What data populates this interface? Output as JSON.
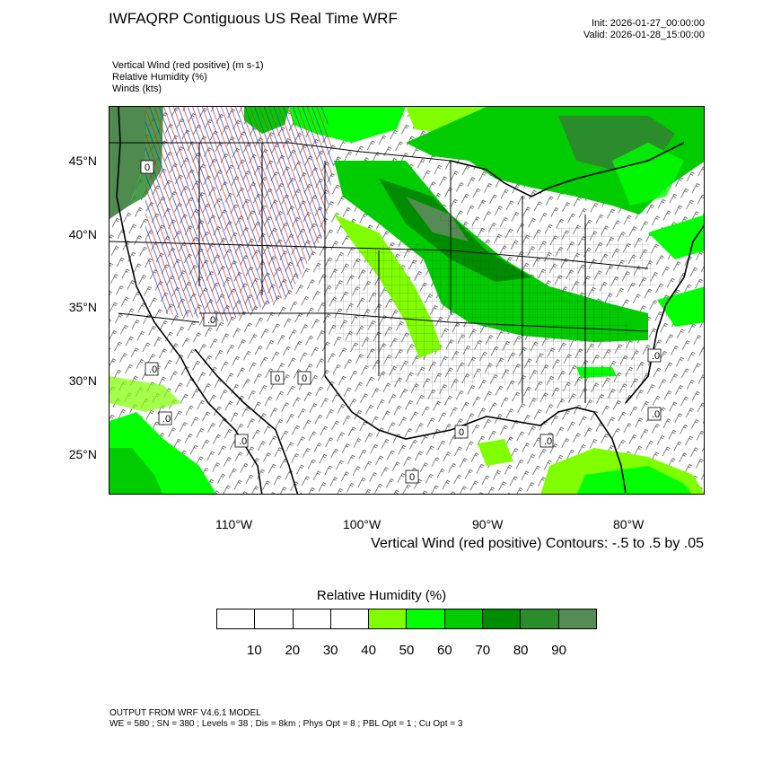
{
  "header": {
    "title": "IWFAQRP Contiguous US Real Time WRF",
    "init": "Init: 2026-01-27_00:00:00",
    "valid": "Valid: 2026-01-28_15:00:00"
  },
  "fields": [
    "Vertical Wind (red positive)   (m s-1)",
    "Relative Humidity   (%)",
    "Winds   (kts)"
  ],
  "map": {
    "lat_labels": [
      "45°N",
      "40°N",
      "35°N",
      "30°N",
      "25°N"
    ],
    "lon_labels": [
      "110°W",
      "100°W",
      "90°W",
      "80°W"
    ],
    "contour_value_label": "0",
    "contour_value_label_alt": ".0"
  },
  "contour_note": "Vertical Wind (red positive) Contours: -.5 to .5 by .05",
  "colorbar": {
    "title": "Relative Humidity  (%)",
    "labels": [
      "10",
      "20",
      "30",
      "40",
      "50",
      "60",
      "70",
      "80",
      "90"
    ],
    "colors": [
      "#ffffff",
      "#ffffff",
      "#ffffff",
      "#ffffff",
      "#80ff00",
      "#00ff00",
      "#00cc00",
      "#008c00",
      "#2a8c2a",
      "#548c54"
    ]
  },
  "footer": {
    "line1": "OUTPUT FROM WRF V4.6.1 MODEL",
    "line2": "WE = 580 ; SN = 380 ; Levels = 38 ; Dis = 8km ; Phys Opt = 8 ; PBL Opt = 1 ; Cu Opt = 3"
  }
}
